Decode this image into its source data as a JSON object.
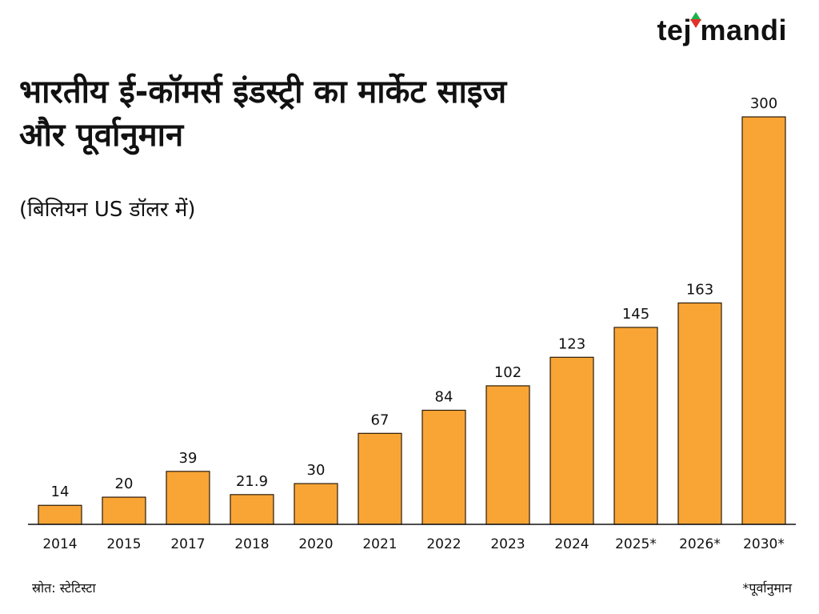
{
  "logo": {
    "pre": "te",
    "j": "j",
    "i": "i",
    "post": "mandi"
  },
  "source": "स्रोत: स्टेटिस्टा",
  "footnote": "*पूर्वानुमान",
  "colors": {
    "bar": "#f9a535",
    "bar_stroke": "#2a1a0a",
    "axis": "#111111",
    "up": "#1bb14a",
    "down": "#e0322b"
  },
  "chart_data": {
    "type": "bar",
    "title": "भारतीय ई-कॉमर्स इंडस्ट्री का मार्केट साइज और पूर्वानुमान",
    "subtitle": "(बिलियन US डॉलर में)",
    "categories": [
      "2014",
      "2015",
      "2017",
      "2018",
      "2020",
      "2021",
      "2022",
      "2023",
      "2024",
      "2025*",
      "2026*",
      "2030*"
    ],
    "values": [
      14,
      20,
      39,
      21.9,
      30,
      67,
      84,
      102,
      123,
      145,
      163,
      300
    ],
    "value_labels": [
      "14",
      "20",
      "39",
      "21.9",
      "30",
      "67",
      "84",
      "102",
      "123",
      "145",
      "163",
      "300"
    ],
    "ylim": [
      0,
      300
    ],
    "grid": false,
    "legend": "none"
  }
}
